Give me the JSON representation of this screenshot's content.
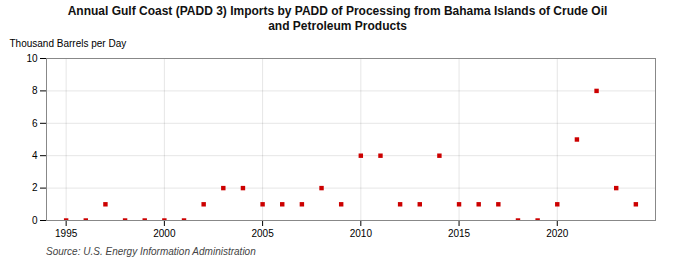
{
  "chart_data": {
    "type": "scatter",
    "title": "Annual Gulf Coast (PADD 3) Imports by PADD of Processing from Bahama Islands of Crude Oil\nand Petroleum Products",
    "ylabel": "Thousand Barrels per Day",
    "annotations": [
      "Source: U.S. Energy Information Administration"
    ],
    "x": [
      1995,
      1996,
      1997,
      1998,
      1999,
      2000,
      2001,
      2002,
      2003,
      2004,
      2005,
      2006,
      2007,
      2008,
      2009,
      2010,
      2011,
      2012,
      2013,
      2014,
      2015,
      2016,
      2017,
      2018,
      2019,
      2020,
      2021,
      2022,
      2023,
      2024
    ],
    "values": [
      0,
      0,
      1,
      0,
      0,
      0,
      0,
      1,
      2,
      2,
      1,
      1,
      1,
      2,
      1,
      4,
      4,
      1,
      1,
      4,
      1,
      1,
      1,
      0,
      0,
      1,
      5,
      8,
      2,
      1
    ],
    "color": "#cc0000",
    "marker": "square",
    "xlim": [
      1994.0,
      2025.0
    ],
    "xticks": [
      1995,
      2000,
      2005,
      2010,
      2015,
      2020
    ],
    "ylim": [
      0,
      10
    ],
    "yticks": [
      0,
      2,
      4,
      6,
      8,
      10
    ],
    "grid": true
  }
}
